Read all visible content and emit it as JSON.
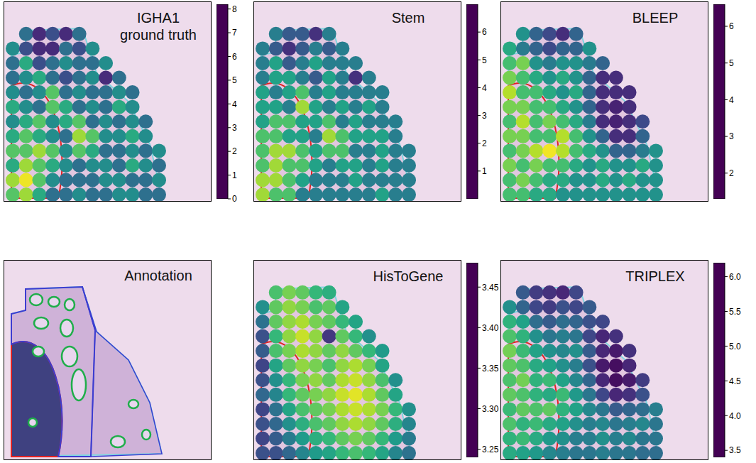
{
  "chart_data": [
    {
      "type": "heatmap",
      "title": "IGHA1 ground truth",
      "color": "viridis",
      "tick_labels": false,
      "cells": [
        [
          null,
          3,
          1,
          2,
          1,
          3,
          null,
          null,
          null,
          null,
          null,
          null
        ],
        [
          4,
          2,
          1,
          1,
          3,
          2,
          4,
          null,
          null,
          null,
          null,
          null
        ],
        [
          3,
          5,
          2,
          3,
          4,
          3,
          3,
          4,
          null,
          null,
          null,
          null
        ],
        [
          3,
          4,
          5,
          3,
          2,
          3,
          4,
          1,
          3,
          null,
          null,
          null
        ],
        [
          4,
          3,
          4,
          6,
          3,
          4,
          3,
          3,
          4,
          3,
          null,
          null
        ],
        [
          5,
          4,
          3,
          6,
          5,
          3,
          4,
          3,
          5,
          4,
          null,
          null
        ],
        [
          4,
          5,
          6,
          4,
          5,
          6,
          3,
          4,
          3,
          4,
          3,
          null
        ],
        [
          5,
          6,
          5,
          4,
          3,
          7,
          6,
          4,
          4,
          5,
          4,
          null
        ],
        [
          6,
          6,
          7,
          6,
          4,
          6,
          5,
          3,
          3,
          4,
          3,
          4
        ],
        [
          5,
          7,
          6,
          5,
          4,
          3,
          4,
          4,
          3,
          5,
          4,
          3
        ],
        [
          7,
          8,
          6,
          4,
          3,
          3,
          3,
          4,
          4,
          3,
          3,
          4
        ],
        [
          6,
          7,
          5,
          3,
          3,
          4,
          3,
          3,
          4,
          4,
          3,
          3
        ]
      ],
      "colorbar_range": [
        0,
        8.2
      ],
      "colorbar_ticks": [
        0,
        1,
        2,
        3,
        4,
        5,
        6,
        7,
        8
      ]
    },
    {
      "type": "heatmap",
      "title": "Stem",
      "color": "viridis",
      "tick_labels": false,
      "cells": [
        [
          null,
          3,
          2,
          2,
          1,
          3,
          null,
          null,
          null,
          null,
          null,
          null
        ],
        [
          3,
          2,
          1,
          2,
          3,
          2,
          3,
          null,
          null,
          null,
          null,
          null
        ],
        [
          3,
          4,
          2,
          3,
          4,
          3,
          3,
          3,
          null,
          null,
          null,
          null
        ],
        [
          3,
          4,
          4,
          3,
          2,
          4,
          3,
          1,
          3,
          null,
          null,
          null
        ],
        [
          4,
          3,
          4,
          5,
          3,
          4,
          3,
          3,
          3,
          3,
          null,
          null
        ],
        [
          4,
          4,
          3,
          6,
          4,
          3,
          4,
          3,
          4,
          3,
          null,
          null
        ],
        [
          4,
          5,
          5,
          4,
          4,
          5,
          3,
          4,
          3,
          3,
          3,
          null
        ],
        [
          5,
          5,
          4,
          4,
          3,
          6,
          5,
          4,
          4,
          4,
          3,
          null
        ],
        [
          5,
          6,
          6,
          5,
          4,
          5,
          5,
          3,
          3,
          4,
          3,
          3
        ],
        [
          5,
          6,
          5,
          5,
          4,
          3,
          4,
          4,
          3,
          4,
          3,
          3
        ],
        [
          6,
          6,
          5,
          4,
          3,
          3,
          3,
          4,
          3,
          3,
          3,
          3
        ],
        [
          6,
          5,
          5,
          3,
          3,
          3,
          3,
          3,
          3,
          4,
          3,
          3
        ]
      ],
      "colorbar_range": [
        0,
        7
      ],
      "colorbar_ticks": [
        1,
        2,
        3,
        4,
        5,
        6
      ]
    },
    {
      "type": "heatmap",
      "title": "BLEEP",
      "color": "viridis",
      "tick_labels": false,
      "cells": [
        [
          null,
          4,
          3,
          2.5,
          2,
          3,
          null,
          null,
          null,
          null,
          null,
          null
        ],
        [
          4.5,
          3.5,
          3,
          2.5,
          3,
          3,
          4,
          null,
          null,
          null,
          null,
          null
        ],
        [
          5,
          5.5,
          4,
          3.5,
          4,
          4,
          3.5,
          3,
          null,
          null,
          null,
          null
        ],
        [
          5.5,
          5,
          4.5,
          4,
          4.5,
          4,
          3,
          2,
          2,
          null,
          null,
          null
        ],
        [
          6,
          5,
          5,
          4.5,
          4,
          4.5,
          3,
          2,
          2,
          2,
          null,
          null
        ],
        [
          5.5,
          5.5,
          5,
          5,
          4.5,
          4,
          3,
          2,
          1.8,
          2,
          null,
          null
        ],
        [
          5,
          6,
          5,
          5.5,
          5,
          4.5,
          3.5,
          2,
          1.8,
          2,
          2.5,
          null
        ],
        [
          5.5,
          5.5,
          5,
          5,
          6,
          5,
          4,
          3,
          2,
          2,
          3,
          null
        ],
        [
          5,
          5.5,
          6,
          6.5,
          6,
          5,
          4.5,
          4,
          3,
          3,
          3.5,
          4
        ],
        [
          5.5,
          5,
          5.5,
          5,
          5,
          4.5,
          4,
          4.5,
          4,
          4,
          4.5,
          4
        ],
        [
          5,
          5.5,
          5,
          4.5,
          4.5,
          4,
          4,
          4.5,
          4,
          4.5,
          4,
          4
        ],
        [
          5,
          5,
          4.5,
          4.5,
          4,
          4,
          4,
          4,
          4,
          4,
          4,
          4
        ]
      ],
      "colorbar_range": [
        1.3,
        6.6
      ],
      "colorbar_ticks": [
        2,
        3,
        4,
        5,
        6
      ]
    },
    {
      "type": "heatmap",
      "title": "HisToGene",
      "color": "viridis",
      "tick_labels": false,
      "cells": [
        [
          null,
          3.41,
          3.43,
          3.42,
          3.4,
          3.39,
          null,
          null,
          null,
          null,
          null,
          null
        ],
        [
          3.36,
          3.42,
          3.44,
          3.43,
          3.41,
          3.42,
          3.38,
          null,
          null,
          null,
          null,
          null
        ],
        [
          3.33,
          3.42,
          3.44,
          3.45,
          3.43,
          3.42,
          3.4,
          3.38,
          null,
          null,
          null,
          null
        ],
        [
          3.3,
          3.4,
          3.44,
          3.46,
          3.44,
          3.28,
          3.42,
          3.4,
          3.36,
          null,
          null,
          null
        ],
        [
          3.31,
          3.41,
          3.43,
          3.45,
          3.44,
          3.42,
          3.44,
          3.42,
          3.4,
          3.37,
          null,
          null
        ],
        [
          3.29,
          3.38,
          3.42,
          3.44,
          3.43,
          3.41,
          3.44,
          3.45,
          3.43,
          3.38,
          null,
          null
        ],
        [
          3.3,
          3.36,
          3.4,
          3.43,
          3.44,
          3.42,
          3.45,
          3.46,
          3.44,
          3.41,
          3.36,
          null
        ],
        [
          3.32,
          3.35,
          3.4,
          3.42,
          3.43,
          3.44,
          3.46,
          3.47,
          3.45,
          3.42,
          3.38,
          null
        ],
        [
          3.29,
          3.33,
          3.38,
          3.41,
          3.42,
          3.43,
          3.45,
          3.46,
          3.45,
          3.43,
          3.4,
          3.36
        ],
        [
          3.3,
          3.32,
          3.36,
          3.39,
          3.41,
          3.42,
          3.44,
          3.45,
          3.44,
          3.42,
          3.39,
          3.35
        ],
        [
          3.29,
          3.31,
          3.34,
          3.37,
          3.39,
          3.4,
          3.42,
          3.43,
          3.42,
          3.4,
          3.37,
          3.34
        ],
        [
          3.3,
          3.3,
          3.32,
          3.35,
          3.37,
          3.38,
          3.4,
          3.41,
          3.4,
          3.38,
          3.35,
          3.33
        ]
      ],
      "colorbar_range": [
        3.24,
        3.48
      ],
      "colorbar_ticks": [
        3.25,
        {
          "value": 3.3,
          "label": "3.30"
        },
        3.35,
        {
          "value": 3.4,
          "label": "3.40"
        },
        3.45
      ]
    },
    {
      "type": "heatmap",
      "title": "TRIPLEX",
      "color": "viridis",
      "tick_labels": false,
      "cells": [
        [
          null,
          4.2,
          3.9,
          3.8,
          3.7,
          4.0,
          null,
          null,
          null,
          null,
          null,
          null
        ],
        [
          4.8,
          4.3,
          4.0,
          3.9,
          4.1,
          4.0,
          4.2,
          null,
          null,
          null,
          null,
          null
        ],
        [
          5.2,
          5.0,
          4.4,
          4.2,
          4.4,
          4.3,
          4.1,
          4.0,
          null,
          null,
          null,
          null
        ],
        [
          5.4,
          5.2,
          4.8,
          4.5,
          4.6,
          4.5,
          4.0,
          3.7,
          3.8,
          null,
          null,
          null
        ],
        [
          5.6,
          5.3,
          5.0,
          4.8,
          4.7,
          4.8,
          4.2,
          3.7,
          3.6,
          3.8,
          null,
          null
        ],
        [
          5.5,
          5.4,
          5.1,
          5.0,
          4.8,
          4.6,
          4.1,
          3.6,
          3.5,
          3.7,
          null,
          null
        ],
        [
          5.4,
          5.6,
          5.2,
          5.3,
          5.0,
          4.7,
          4.3,
          3.7,
          3.5,
          3.6,
          3.9,
          null
        ],
        [
          5.5,
          5.4,
          5.2,
          5.1,
          5.3,
          4.9,
          4.5,
          4.0,
          3.7,
          3.8,
          4.1,
          null
        ],
        [
          5.3,
          5.5,
          5.4,
          5.5,
          5.2,
          5.0,
          4.7,
          4.5,
          4.2,
          4.3,
          4.4,
          4.6
        ],
        [
          5.4,
          5.2,
          5.3,
          5.1,
          5.0,
          4.8,
          4.6,
          4.7,
          4.5,
          4.6,
          4.7,
          4.5
        ],
        [
          5.2,
          5.3,
          5.1,
          4.9,
          4.8,
          4.6,
          4.6,
          4.8,
          4.6,
          4.7,
          4.5,
          4.5
        ],
        [
          5.1,
          5.0,
          4.9,
          4.7,
          4.6,
          4.5,
          4.5,
          4.6,
          4.5,
          4.5,
          4.4,
          4.4
        ]
      ],
      "colorbar_range": [
        3.4,
        6.2
      ],
      "colorbar_ticks": [
        3.5,
        {
          "value": 4,
          "label": "4.0"
        },
        4.5,
        {
          "value": 5,
          "label": "5.0"
        },
        5.5,
        {
          "value": 6,
          "label": "6.0"
        }
      ]
    }
  ],
  "annotation_panel": {
    "title": "Annotation"
  }
}
